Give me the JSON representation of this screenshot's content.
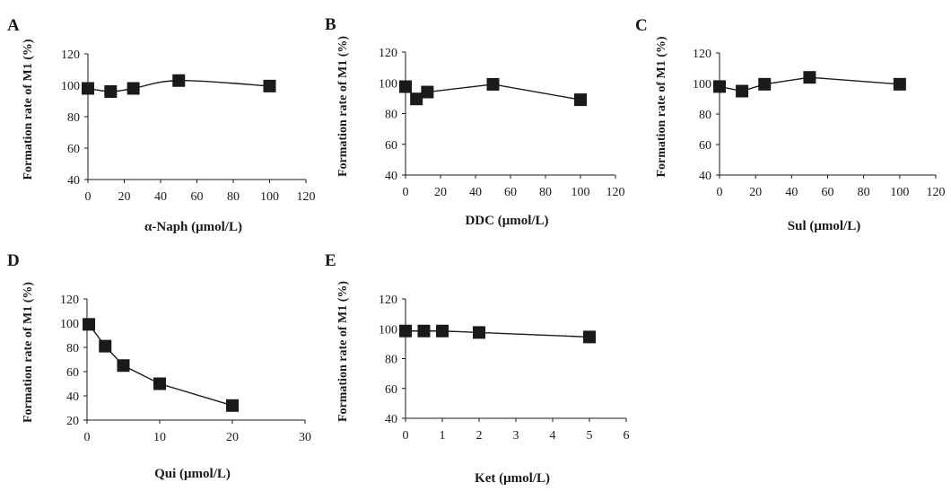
{
  "chart_data": [
    {
      "panel": "A",
      "type": "line",
      "xlabel": "α-Naph (μmol/L)",
      "ylabel": "Formation rate of M1 (%)",
      "xlim": [
        0,
        120
      ],
      "ylim": [
        40,
        120
      ],
      "xticks": [
        0,
        20,
        40,
        60,
        80,
        100,
        120
      ],
      "yticks": [
        40,
        60,
        80,
        100,
        120
      ],
      "x": [
        0,
        12.5,
        25,
        50,
        100
      ],
      "y": [
        98,
        96,
        98,
        103,
        99.5
      ],
      "smooth": true
    },
    {
      "panel": "B",
      "type": "line",
      "xlabel": "DDC (μmol/L)",
      "ylabel": "Formation rate of M1 (%)",
      "xlim": [
        0,
        120
      ],
      "ylim": [
        40,
        120
      ],
      "xticks": [
        0,
        20,
        40,
        60,
        80,
        100,
        120
      ],
      "yticks": [
        40,
        60,
        80,
        100,
        120
      ],
      "x": [
        0,
        6.25,
        12.5,
        50,
        100
      ],
      "y": [
        97.5,
        89.5,
        94,
        99,
        89
      ],
      "smooth": false
    },
    {
      "panel": "C",
      "type": "line",
      "xlabel": "Sul (μmol/L)",
      "ylabel": "Formation rate of M1 (%)",
      "xlim": [
        0,
        120
      ],
      "ylim": [
        40,
        120
      ],
      "xticks": [
        0,
        20,
        40,
        60,
        80,
        100,
        120
      ],
      "yticks": [
        40,
        60,
        80,
        100,
        120
      ],
      "x": [
        0,
        12.5,
        25,
        50,
        100
      ],
      "y": [
        98,
        95,
        99.5,
        104,
        99.5
      ],
      "smooth": false
    },
    {
      "panel": "D",
      "type": "line",
      "xlabel": "Qui (μmol/L)",
      "ylabel": "Formation rate of M1 (%)",
      "xlim": [
        0,
        30
      ],
      "ylim": [
        20,
        120
      ],
      "xticks": [
        0,
        10,
        20,
        30
      ],
      "yticks": [
        20,
        40,
        60,
        80,
        100,
        120
      ],
      "x": [
        0.25,
        2.5,
        5,
        10,
        20
      ],
      "y": [
        99,
        81,
        65,
        50,
        32
      ],
      "smooth": false
    },
    {
      "panel": "E",
      "type": "line",
      "xlabel": "Ket (μmol/L)",
      "ylabel": "Formation rate of M1 (%)",
      "xlim": [
        0,
        6
      ],
      "ylim": [
        40,
        120
      ],
      "xticks": [
        0,
        1,
        2,
        3,
        4,
        5,
        6
      ],
      "yticks": [
        40,
        60,
        80,
        100,
        120
      ],
      "x": [
        0,
        0.5,
        1,
        2,
        5
      ],
      "y": [
        98.5,
        98.5,
        98.5,
        97.5,
        94.5
      ],
      "smooth": false
    }
  ]
}
